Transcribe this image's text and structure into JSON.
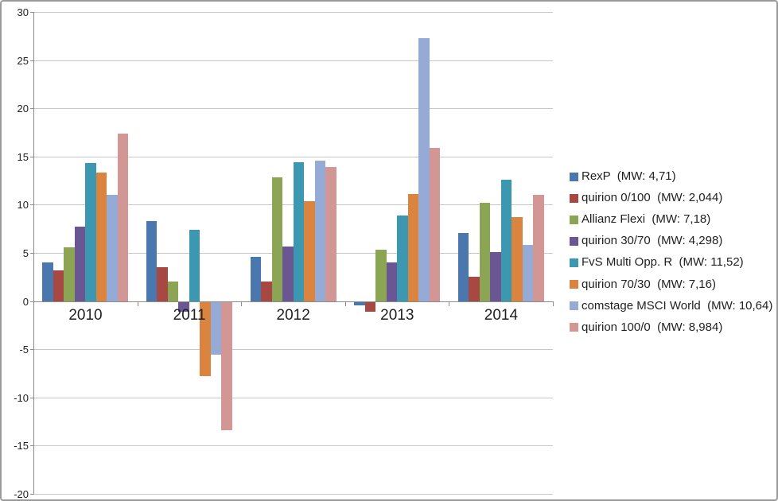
{
  "chart_data": {
    "type": "bar",
    "title": "",
    "xlabel": "",
    "ylabel": "",
    "categories": [
      "2010",
      "2011",
      "2012",
      "2013",
      "2014"
    ],
    "series": [
      {
        "name": "RexP",
        "mw": "4,71",
        "legend_label": "RexP  (MW: 4,71)",
        "color": "#4A77AE",
        "values": [
          4.0,
          8.3,
          4.6,
          -0.4,
          7.1
        ]
      },
      {
        "name": "quirion 0/100",
        "mw": "2,044",
        "legend_label": "quirion 0/100  (MW: 2,044)",
        "color": "#A84843",
        "values": [
          3.2,
          3.5,
          2.0,
          -1.0,
          2.5
        ]
      },
      {
        "name": "Allianz Flexi",
        "mw": "7,18",
        "legend_label": "Allianz Flexi  (MW: 7,18)",
        "color": "#8CA554",
        "values": [
          5.6,
          2.0,
          12.8,
          5.3,
          10.2
        ]
      },
      {
        "name": "quirion 30/70",
        "mw": "4,298",
        "legend_label": "quirion 30/70  (MW: 4,298)",
        "color": "#6A5693",
        "values": [
          7.7,
          -1.0,
          5.7,
          4.0,
          5.1
        ]
      },
      {
        "name": "FvS Multi Opp. R",
        "mw": "11,52",
        "legend_label": "FvS Multi Opp. R  (MW: 11,52)",
        "color": "#3B98B0",
        "values": [
          14.3,
          7.4,
          14.4,
          8.9,
          12.6
        ]
      },
      {
        "name": "quirion 70/30",
        "mw": "7,16",
        "legend_label": "quirion 70/30  (MW: 7,16)",
        "color": "#DB8440",
        "values": [
          13.3,
          -7.7,
          10.4,
          11.1,
          8.7
        ]
      },
      {
        "name": "comstage MSCI World",
        "mw": "10,64",
        "legend_label": "comstage MSCI World  (MW: 10,64)",
        "color": "#95ABD5",
        "values": [
          11.0,
          -5.5,
          14.6,
          27.3,
          5.8
        ]
      },
      {
        "name": "quirion 100/0",
        "mw": "8,984",
        "legend_label": "quirion 100/0  (MW: 8,984)",
        "color": "#D29795",
        "values": [
          17.4,
          -13.3,
          13.9,
          15.9,
          11.0
        ]
      }
    ],
    "y_axis": {
      "min": -20,
      "max": 30,
      "step": 5,
      "tick_labels": [
        "30",
        "25",
        "20",
        "15",
        "10",
        "5",
        "0",
        "-5",
        "-10",
        "-15",
        "-20"
      ]
    },
    "grid": true,
    "legend_position": "right"
  }
}
